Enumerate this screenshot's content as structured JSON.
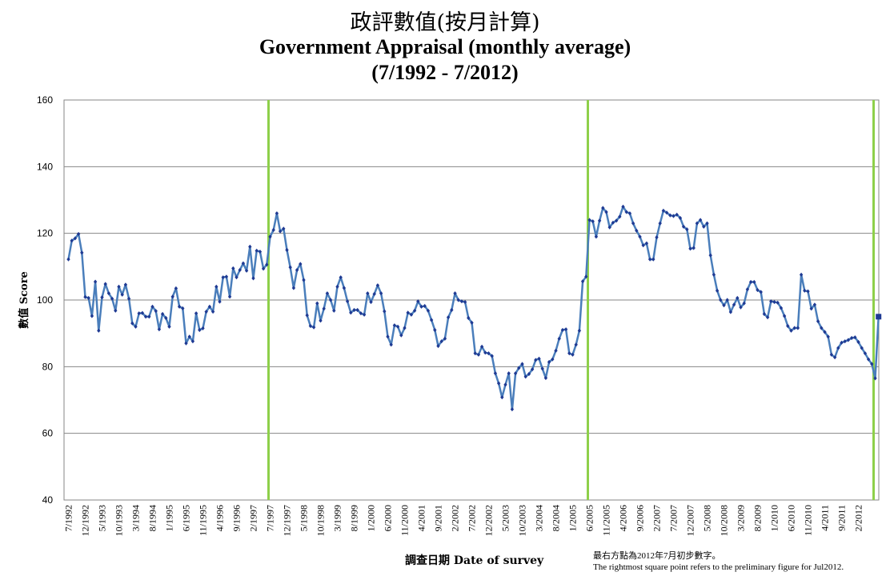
{
  "chart_data": {
    "type": "line",
    "title": "政評數值(按月計算)",
    "subtitle": "Government Appraisal (monthly average)",
    "period": "(7/1992 - 7/2012)",
    "ylabel": "數值 Score",
    "xlabel": "調查日期 Date of survey",
    "ylim": [
      40,
      160
    ],
    "yticks": [
      40,
      60,
      80,
      100,
      120,
      140,
      160
    ],
    "grid": true,
    "x_start": "7/1992",
    "x_end": "7/2012",
    "xtick_labels": [
      "7/1992",
      "12/1992",
      "5/1993",
      "10/1993",
      "3/1994",
      "8/1994",
      "1/1995",
      "6/1995",
      "11/1995",
      "4/1996",
      "9/1996",
      "2/1997",
      "7/1997",
      "12/1997",
      "5/1998",
      "10/1998",
      "3/1999",
      "8/1999",
      "1/2000",
      "6/2000",
      "11/2000",
      "4/2001",
      "9/2001",
      "2/2002",
      "7/2002",
      "12/2002",
      "5/2003",
      "10/2003",
      "3/2004",
      "8/2004",
      "1/2005",
      "6/2005",
      "11/2005",
      "4/2006",
      "9/2006",
      "2/2007",
      "7/2007",
      "12/2007",
      "5/2008",
      "10/2008",
      "3/2009",
      "8/2009",
      "1/2010",
      "6/2010",
      "11/2010",
      "4/2011",
      "9/2011",
      "2/2012"
    ],
    "markers": [
      "7/1997",
      "6/2005",
      "7/2012"
    ],
    "series": [
      {
        "values": [
          112.2,
          117.8,
          118.5,
          119.8,
          114.2,
          100.9,
          100.6,
          95.2,
          105.5,
          90.8,
          100.8,
          104.8,
          102.0,
          100.4,
          96.8,
          104.0,
          101.6,
          104.6,
          100.4,
          93.0,
          92.0,
          96.0,
          96.1,
          95.0,
          95.0,
          98.0,
          96.7,
          91.2,
          95.8,
          94.6,
          92.0,
          101.0,
          103.5,
          98.0,
          97.5,
          87.0,
          89.0,
          87.6,
          96.0,
          91.0,
          91.5,
          96.5,
          98.0,
          96.5,
          104.0,
          99.5,
          106.8,
          107.0,
          101.0,
          109.5,
          106.8,
          109.0,
          111.0,
          108.8,
          116.0,
          106.5,
          114.8,
          114.5,
          109.4,
          110.6,
          119.0,
          121.0,
          126.0,
          120.6,
          121.4,
          115.0,
          109.8,
          103.6,
          109.0,
          110.8,
          106.0,
          95.4,
          92.2,
          91.8,
          99.0,
          93.8,
          97.4,
          102.0,
          100.0,
          96.8,
          104.0,
          106.8,
          103.6,
          99.6,
          96.2,
          97.0,
          97.0,
          96.0,
          95.6,
          102.0,
          99.4,
          101.8,
          104.4,
          102.0,
          96.6,
          89.0,
          86.6,
          92.4,
          92.0,
          89.4,
          91.6,
          96.2,
          95.6,
          96.8,
          99.6,
          98.0,
          98.2,
          96.8,
          94.0,
          91.0,
          86.2,
          87.6,
          88.4,
          94.8,
          97.0,
          102.0,
          100.0,
          99.6,
          99.4,
          94.6,
          93.2,
          84.0,
          83.6,
          86.0,
          84.2,
          84.0,
          83.2,
          78.0,
          75.0,
          70.8,
          74.6,
          78.0,
          67.2,
          78.0,
          79.6,
          80.8,
          77.0,
          77.8,
          79.2,
          82.0,
          82.4,
          79.4,
          76.6,
          81.4,
          82.2,
          84.8,
          88.4,
          91.0,
          91.2,
          84.0,
          83.6,
          86.6,
          90.8,
          105.6,
          107.0,
          124.0,
          123.6,
          119.0,
          123.8,
          127.6,
          126.4,
          121.8,
          123.2,
          123.8,
          125.0,
          128.0,
          126.4,
          126.0,
          123.0,
          120.8,
          119.0,
          116.4,
          117.0,
          112.2,
          112.2,
          118.8,
          123.0,
          126.8,
          126.2,
          125.4,
          125.2,
          125.6,
          124.6,
          122.0,
          121.2,
          115.4,
          115.6,
          123.0,
          124.0,
          122.0,
          123.0,
          113.4,
          107.6,
          102.8,
          100.0,
          98.4,
          100.0,
          96.4,
          98.6,
          100.6,
          97.8,
          99.0,
          103.2,
          105.4,
          105.4,
          103.0,
          102.4,
          95.8,
          94.8,
          99.6,
          99.4,
          99.2,
          97.6,
          95.2,
          92.2,
          90.8,
          91.6,
          91.6,
          107.6,
          102.8,
          102.6,
          97.4,
          98.6,
          93.6,
          91.6,
          90.4,
          89.0,
          83.6,
          82.8,
          85.6,
          87.2,
          87.6,
          88.0,
          88.6,
          88.8,
          87.4,
          85.6,
          84.0,
          82.2,
          80.8,
          76.5,
          95.0
        ],
        "line_color": "#4a7ebb",
        "marker_color": "#1f3a93"
      }
    ],
    "marker_color": "#8ed04a",
    "last_point_color": "#1f3a93",
    "gridline_color": "#868686"
  },
  "footnote": {
    "zh": "最右方點為2012年7月初步數字。",
    "en": "The rightmost square point refers to the preliminary figure for Jul2012."
  }
}
